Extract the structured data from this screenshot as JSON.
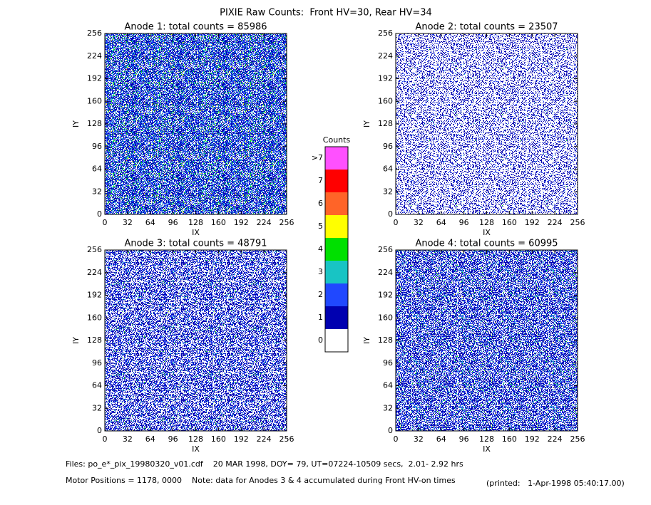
{
  "title": "PIXIE Raw Counts:  Front HV=30, Rear HV=34",
  "chart_data": [
    {
      "type": "heatmap",
      "title": "Anode 1: total counts = 85986",
      "xlabel": "IX",
      "ylabel": "IY",
      "xlim": [
        0,
        256
      ],
      "ylim": [
        0,
        256
      ],
      "xticks": [
        0,
        32,
        64,
        96,
        128,
        160,
        192,
        224,
        256
      ],
      "yticks": [
        0,
        32,
        64,
        96,
        128,
        160,
        192,
        224,
        256
      ]
    },
    {
      "type": "heatmap",
      "title": "Anode 2: total counts = 23507",
      "xlabel": "IX",
      "ylabel": "IY",
      "xlim": [
        0,
        256
      ],
      "ylim": [
        0,
        256
      ],
      "xticks": [
        0,
        32,
        64,
        96,
        128,
        160,
        192,
        224,
        256
      ],
      "yticks": [
        0,
        32,
        64,
        96,
        128,
        160,
        192,
        224,
        256
      ]
    },
    {
      "type": "heatmap",
      "title": "Anode 3: total counts = 48791",
      "xlabel": "IX",
      "ylabel": "IY",
      "xlim": [
        0,
        256
      ],
      "ylim": [
        0,
        256
      ],
      "xticks": [
        0,
        32,
        64,
        96,
        128,
        160,
        192,
        224,
        256
      ],
      "yticks": [
        0,
        32,
        64,
        96,
        128,
        160,
        192,
        224,
        256
      ]
    },
    {
      "type": "heatmap",
      "title": "Anode 4: total counts = 60995",
      "xlabel": "IX",
      "ylabel": "IY",
      "xlim": [
        0,
        256
      ],
      "ylim": [
        0,
        256
      ],
      "xticks": [
        0,
        32,
        64,
        96,
        128,
        160,
        192,
        224,
        256
      ],
      "yticks": [
        0,
        32,
        64,
        96,
        128,
        160,
        192,
        224,
        256
      ]
    }
  ],
  "colorbar": {
    "title": "Counts",
    "levels": [
      {
        "label": "0",
        "color": "#ffffff"
      },
      {
        "label": "1",
        "color": "#0000b0"
      },
      {
        "label": "2",
        "color": "#2048ff"
      },
      {
        "label": "3",
        "color": "#18c4c4"
      },
      {
        "label": "4",
        "color": "#00e000"
      },
      {
        "label": "5",
        "color": "#ffff00"
      },
      {
        "label": "6",
        "color": "#ff6428"
      },
      {
        "label": "7",
        "color": "#ff0000"
      },
      {
        "label": ">7",
        "color": "#ff50ff"
      }
    ]
  },
  "footer": {
    "files": "Files: po_e*_pix_19980320_v01.cdf    20 MAR 1998, DOY= 79, UT=07224-10509 secs,  2.01- 2.92 hrs",
    "motor": "Motor Positions = 1178, 0000    Note: data for Anodes 3 & 4 accumulated during Front HV-on times",
    "printed": "(printed:   1-Apr-1998 05:40:17.00)"
  }
}
